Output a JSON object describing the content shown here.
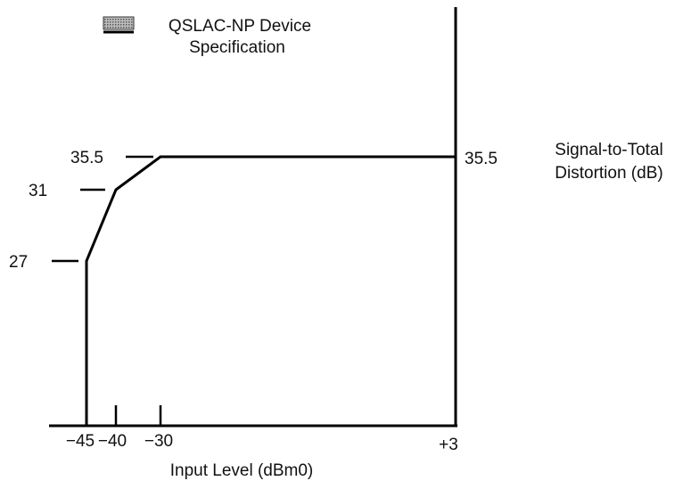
{
  "chart_data": {
    "type": "line",
    "xlabel": "Input Level (dBm0)",
    "ylabel_lines": [
      "Signal-to-Total",
      "Distortion (dB)"
    ],
    "legend": {
      "lines": [
        "QSLAC-NP Device",
        "Specification"
      ],
      "placement": "top-left",
      "swatch_color": "#555555"
    },
    "x_ticks": [
      "−45",
      "−40",
      "−30",
      "+3"
    ],
    "y_ticks_left": [
      "27",
      "31",
      "35.5"
    ],
    "y_tick_right": "35.5",
    "series": [
      {
        "x": [
          -45,
          -45,
          -40,
          -30,
          3
        ],
        "y": [
          20,
          27,
          31,
          35.5,
          35.5
        ]
      }
    ],
    "grid": false
  }
}
